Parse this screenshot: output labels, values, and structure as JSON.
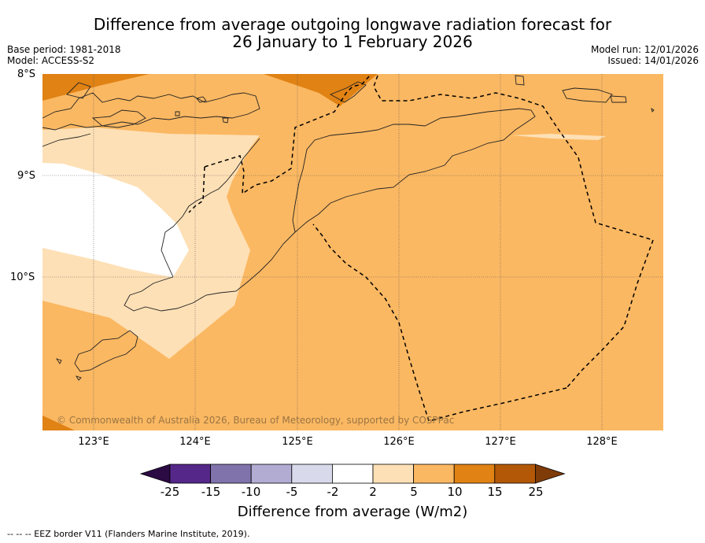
{
  "title": {
    "line1": "Difference from average outgoing longwave radiation forecast for",
    "line2": "26 January to 1 February 2026"
  },
  "meta": {
    "base_period": "Base period: 1981-2018",
    "model": "Model: ACCESS-S2",
    "model_run": "Model run: 12/01/2026",
    "issued": "Issued: 14/01/2026"
  },
  "axes": {
    "lat_labels": [
      "8°S",
      "9°S",
      "10°S"
    ],
    "lon_labels": [
      "123°E",
      "124°E",
      "125°E",
      "126°E",
      "127°E",
      "128°E"
    ]
  },
  "map": {
    "copyright": "© Commonwealth of Australia 2026, Bureau of Meteorology, supported by COSPPac",
    "colors": {
      "c_m25": "#2c0a44",
      "c_m15": "#542788",
      "c_m10": "#8073ac",
      "c_m5": "#b2abd2",
      "c_m2": "#d8daeb",
      "c_0": "#ffffff",
      "c_2": "#fee0b6",
      "c_5": "#fbb862",
      "c_10": "#e08214",
      "c_15": "#b35806",
      "c_25": "#7f3b08"
    }
  },
  "colorbar": {
    "labels": [
      "-25",
      "-15",
      "-10",
      "-5",
      "-2",
      "2",
      "5",
      "10",
      "15",
      "25"
    ],
    "title": "Difference from average (W/m2)"
  },
  "footnote": "--  --  -- EEZ border V11 (Flanders Marine Institute, 2019)."
}
